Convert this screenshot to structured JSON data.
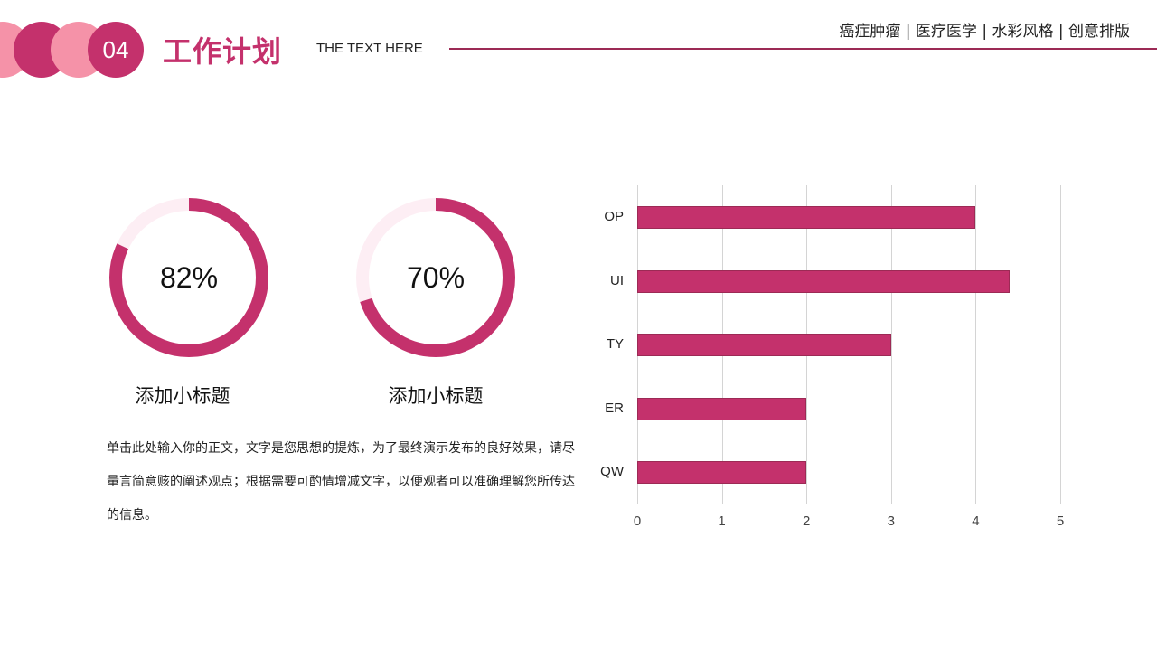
{
  "header": {
    "section_number": "04",
    "title": "工作计划",
    "subtitle": "THE TEXT HERE",
    "tags": "癌症肿瘤 | 医疗医学 | 水彩风格 | 创意排版"
  },
  "donuts": [
    {
      "value": 82,
      "label": "82%",
      "caption": "添加小标题"
    },
    {
      "value": 70,
      "label": "70%",
      "caption": "添加小标题"
    }
  ],
  "body_text": "单击此处输入你的正文，文字是您思想的提炼，为了最终演示发布的良好效果，请尽量言简意赅的阐述观点；根据需要可酌情增减文字，以便观者可以准确理解您所传达的信息。",
  "colors": {
    "accent": "#c4316c",
    "accent_light": "#f592a8",
    "track": "#fdeef4",
    "grid": "#d4d4d4"
  },
  "chart_data": [
    {
      "type": "pie",
      "title": "82%",
      "values": [
        82,
        18
      ],
      "categories": [
        "filled",
        "remaining"
      ],
      "caption": "添加小标题"
    },
    {
      "type": "pie",
      "title": "70%",
      "values": [
        70,
        30
      ],
      "categories": [
        "filled",
        "remaining"
      ],
      "caption": "添加小标题"
    },
    {
      "type": "bar",
      "orientation": "horizontal",
      "categories": [
        "OP",
        "UI",
        "TY",
        "ER",
        "QW"
      ],
      "values": [
        4,
        4.4,
        3,
        2,
        2
      ],
      "xlabel": "",
      "ylabel": "",
      "xlim": [
        0,
        5
      ],
      "xticks": [
        "0",
        "1",
        "2",
        "3",
        "4",
        "5"
      ],
      "grid": true,
      "legend": "none"
    }
  ]
}
